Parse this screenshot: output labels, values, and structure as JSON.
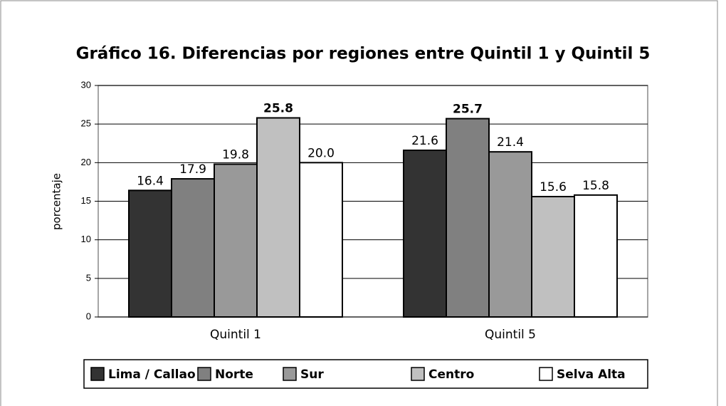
{
  "chart_data": {
    "type": "bar",
    "title": "Gráfico 16. Diferencias por regiones entre Quintil 1 y Quintil 5",
    "y_label": "porcentaje",
    "categories": [
      "Quintil 1",
      "Quintil 5"
    ],
    "series": [
      {
        "name": "Lima / Callao",
        "color": "#333333",
        "values": [
          16.4,
          21.6
        ],
        "value_labels": [
          "16.4",
          "21.6"
        ]
      },
      {
        "name": "Norte",
        "color": "#808080",
        "values": [
          17.9,
          25.7
        ],
        "value_labels": [
          "17.9",
          "25.7"
        ]
      },
      {
        "name": "Sur",
        "color": "#999999",
        "values": [
          19.8,
          21.4
        ],
        "value_labels": [
          "19.8",
          "21.4"
        ]
      },
      {
        "name": "Centro",
        "color": "#c0c0c0",
        "values": [
          25.8,
          15.6
        ],
        "value_labels": [
          "25.8",
          "15.6"
        ]
      },
      {
        "name": "Selva Alta",
        "color": "#ffffff",
        "values": [
          20.0,
          15.8
        ],
        "value_labels": [
          "20.0",
          "15.8"
        ]
      }
    ],
    "ylim": [
      0,
      30
    ],
    "yticks": [
      0,
      5,
      10,
      15,
      20,
      25,
      30
    ],
    "grid": true,
    "legend": "bottom"
  }
}
